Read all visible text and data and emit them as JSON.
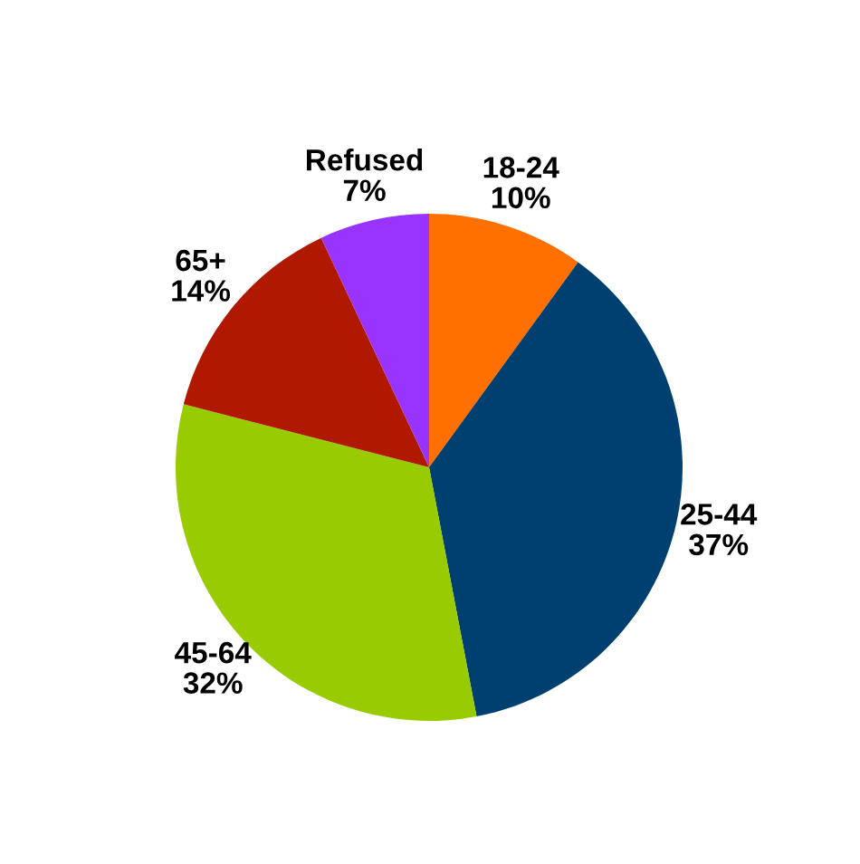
{
  "chart_data": {
    "type": "pie",
    "categories": [
      "18-24",
      "25-44",
      "45-64",
      "65+",
      "Refused"
    ],
    "values": [
      10,
      37,
      32,
      14,
      7
    ],
    "value_labels": [
      "10%",
      "37%",
      "32%",
      "14%",
      "7%"
    ],
    "colors": [
      "#ff7000",
      "#004070",
      "#99cc00",
      "#b01800",
      "#9933ff"
    ],
    "legend": false
  }
}
